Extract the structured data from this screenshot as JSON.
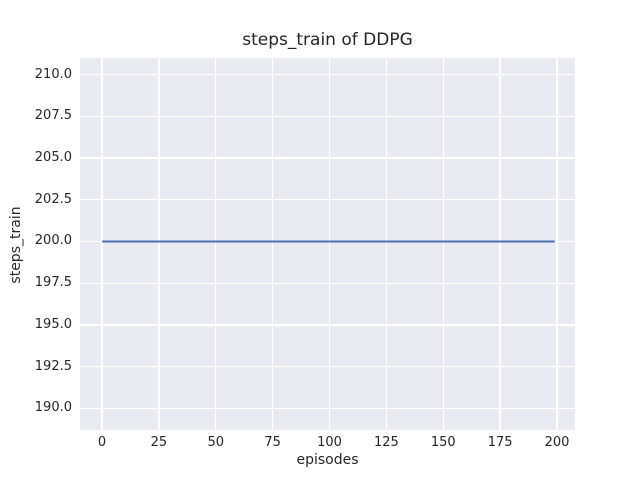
{
  "chart_data": {
    "type": "line",
    "title": "steps_train of DDPG",
    "xlabel": "episodes",
    "ylabel": "steps_train",
    "series": [
      {
        "name": "steps_train",
        "x": [
          0,
          199
        ],
        "y": [
          200,
          200
        ],
        "color": "#4c72b0",
        "description": "constant value 200.0 for every episode from 0 to 199"
      }
    ],
    "xlim": [
      -9.7,
      207.9
    ],
    "ylim": [
      188.7,
      211.0
    ],
    "xticks": {
      "values": [
        0,
        25,
        50,
        75,
        100,
        125,
        150,
        175,
        200
      ],
      "labels": [
        "0",
        "25",
        "50",
        "75",
        "100",
        "125",
        "150",
        "175",
        "200"
      ]
    },
    "yticks": {
      "values": [
        190.0,
        192.5,
        195.0,
        197.5,
        200.0,
        202.5,
        205.0,
        207.5,
        210.0
      ],
      "labels": [
        "190.0",
        "192.5",
        "195.0",
        "197.5",
        "200.0",
        "202.5",
        "205.0",
        "207.5",
        "210.0"
      ]
    },
    "grid": true,
    "legend_position": "none",
    "style": {
      "plot_background": "#eaeaf2",
      "grid_color": "#ffffff",
      "figure_background": "#ffffff",
      "text_color": "#262626",
      "line_width": 2
    }
  }
}
